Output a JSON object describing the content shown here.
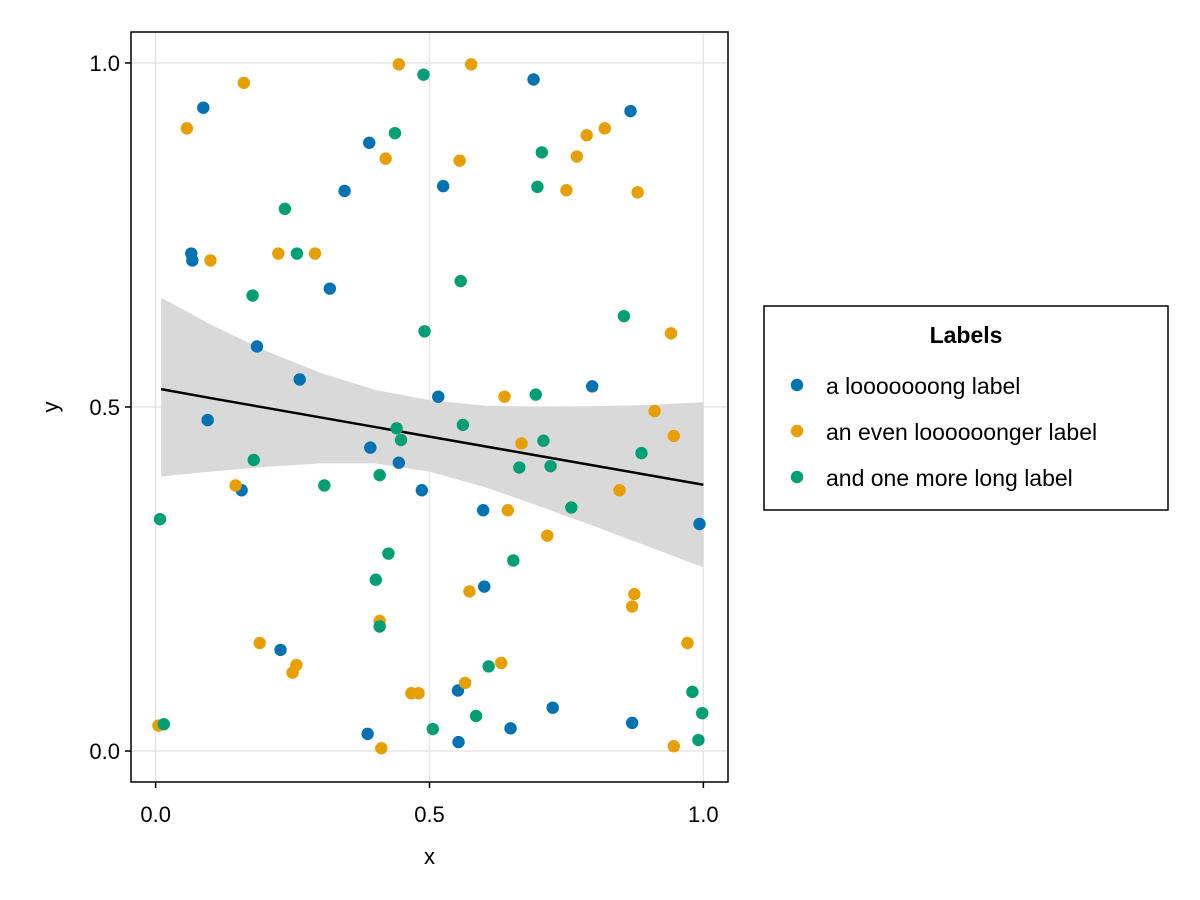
{
  "chart_data": {
    "type": "scatter",
    "xlabel": "x",
    "ylabel": "y",
    "xlim": [
      -0.045,
      1.045
    ],
    "ylim": [
      -0.045,
      1.045
    ],
    "xticks": [
      0.0,
      0.5,
      1.0
    ],
    "yticks": [
      0.0,
      0.5,
      1.0
    ],
    "xtick_labels": [
      "0.0",
      "0.5",
      "1.0"
    ],
    "ytick_labels": [
      "0.0",
      "0.5",
      "1.0"
    ],
    "grid": true,
    "legend": {
      "title": "Labels",
      "placement": "right"
    },
    "series": [
      {
        "name": "a looooooong label",
        "color": "#0072b2",
        "points": [
          [
            0.065,
            0.723
          ],
          [
            0.067,
            0.713
          ],
          [
            0.087,
            0.935
          ],
          [
            0.095,
            0.481
          ],
          [
            0.157,
            0.379
          ],
          [
            0.185,
            0.588
          ],
          [
            0.228,
            0.147
          ],
          [
            0.263,
            0.54
          ],
          [
            0.318,
            0.672
          ],
          [
            0.345,
            0.814
          ],
          [
            0.387,
            0.025
          ],
          [
            0.39,
            0.884
          ],
          [
            0.392,
            0.441
          ],
          [
            0.444,
            0.419
          ],
          [
            0.486,
            0.379
          ],
          [
            0.516,
            0.515
          ],
          [
            0.525,
            0.821
          ],
          [
            0.552,
            0.088
          ],
          [
            0.553,
            0.013
          ],
          [
            0.598,
            0.35
          ],
          [
            0.6,
            0.239
          ],
          [
            0.648,
            0.033
          ],
          [
            0.69,
            0.976
          ],
          [
            0.725,
            0.063
          ],
          [
            0.797,
            0.53
          ],
          [
            0.867,
            0.93
          ],
          [
            0.87,
            0.041
          ],
          [
            0.993,
            0.33
          ]
        ]
      },
      {
        "name": "an even loooooonger label",
        "color": "#e69f00",
        "points": [
          [
            0.005,
            0.037
          ],
          [
            0.057,
            0.905
          ],
          [
            0.1,
            0.713
          ],
          [
            0.146,
            0.386
          ],
          [
            0.161,
            0.971
          ],
          [
            0.19,
            0.157
          ],
          [
            0.224,
            0.723
          ],
          [
            0.25,
            0.114
          ],
          [
            0.257,
            0.125
          ],
          [
            0.291,
            0.723
          ],
          [
            0.409,
            0.189
          ],
          [
            0.412,
            0.004
          ],
          [
            0.42,
            0.861
          ],
          [
            0.467,
            0.084
          ],
          [
            0.48,
            0.084
          ],
          [
            0.444,
            0.998
          ],
          [
            0.555,
            0.858
          ],
          [
            0.565,
            0.099
          ],
          [
            0.573,
            0.232
          ],
          [
            0.576,
            0.998
          ],
          [
            0.637,
            0.515
          ],
          [
            0.643,
            0.35
          ],
          [
            0.631,
            0.128
          ],
          [
            0.668,
            0.447
          ],
          [
            0.715,
            0.313
          ],
          [
            0.75,
            0.815
          ],
          [
            0.769,
            0.864
          ],
          [
            0.787,
            0.895
          ],
          [
            0.82,
            0.905
          ],
          [
            0.847,
            0.379
          ],
          [
            0.87,
            0.21
          ],
          [
            0.874,
            0.228
          ],
          [
            0.88,
            0.812
          ],
          [
            0.911,
            0.494
          ],
          [
            0.941,
            0.607
          ],
          [
            0.946,
            0.458
          ],
          [
            0.946,
            0.007
          ],
          [
            0.971,
            0.157
          ]
        ]
      },
      {
        "name": "and one more long label",
        "color": "#009e73",
        "points": [
          [
            0.008,
            0.337
          ],
          [
            0.015,
            0.039
          ],
          [
            0.177,
            0.662
          ],
          [
            0.179,
            0.423
          ],
          [
            0.236,
            0.788
          ],
          [
            0.258,
            0.723
          ],
          [
            0.308,
            0.386
          ],
          [
            0.402,
            0.249
          ],
          [
            0.409,
            0.401
          ],
          [
            0.409,
            0.181
          ],
          [
            0.425,
            0.287
          ],
          [
            0.437,
            0.898
          ],
          [
            0.44,
            0.469
          ],
          [
            0.448,
            0.452
          ],
          [
            0.489,
            0.983
          ],
          [
            0.491,
            0.61
          ],
          [
            0.506,
            0.032
          ],
          [
            0.557,
            0.683
          ],
          [
            0.561,
            0.474
          ],
          [
            0.585,
            0.051
          ],
          [
            0.608,
            0.123
          ],
          [
            0.653,
            0.277
          ],
          [
            0.664,
            0.412
          ],
          [
            0.694,
            0.518
          ],
          [
            0.697,
            0.82
          ],
          [
            0.705,
            0.87
          ],
          [
            0.708,
            0.451
          ],
          [
            0.721,
            0.414
          ],
          [
            0.759,
            0.354
          ],
          [
            0.855,
            0.632
          ],
          [
            0.887,
            0.433
          ],
          [
            0.98,
            0.086
          ],
          [
            0.991,
            0.016
          ],
          [
            0.998,
            0.055
          ]
        ]
      }
    ],
    "regression": {
      "color": "#000000",
      "band_color": "#d9d9d9",
      "x": [
        0.01,
        0.1,
        0.2,
        0.3,
        0.4,
        0.5,
        0.6,
        0.7,
        0.8,
        0.9,
        1.0
      ],
      "fit": [
        0.526,
        0.513,
        0.499,
        0.485,
        0.471,
        0.457,
        0.443,
        0.429,
        0.415,
        0.401,
        0.387
      ],
      "upper": [
        0.659,
        0.62,
        0.582,
        0.55,
        0.525,
        0.51,
        0.502,
        0.5,
        0.501,
        0.503,
        0.507
      ],
      "lower": [
        0.399,
        0.406,
        0.413,
        0.418,
        0.418,
        0.406,
        0.384,
        0.356,
        0.327,
        0.297,
        0.267
      ]
    }
  }
}
